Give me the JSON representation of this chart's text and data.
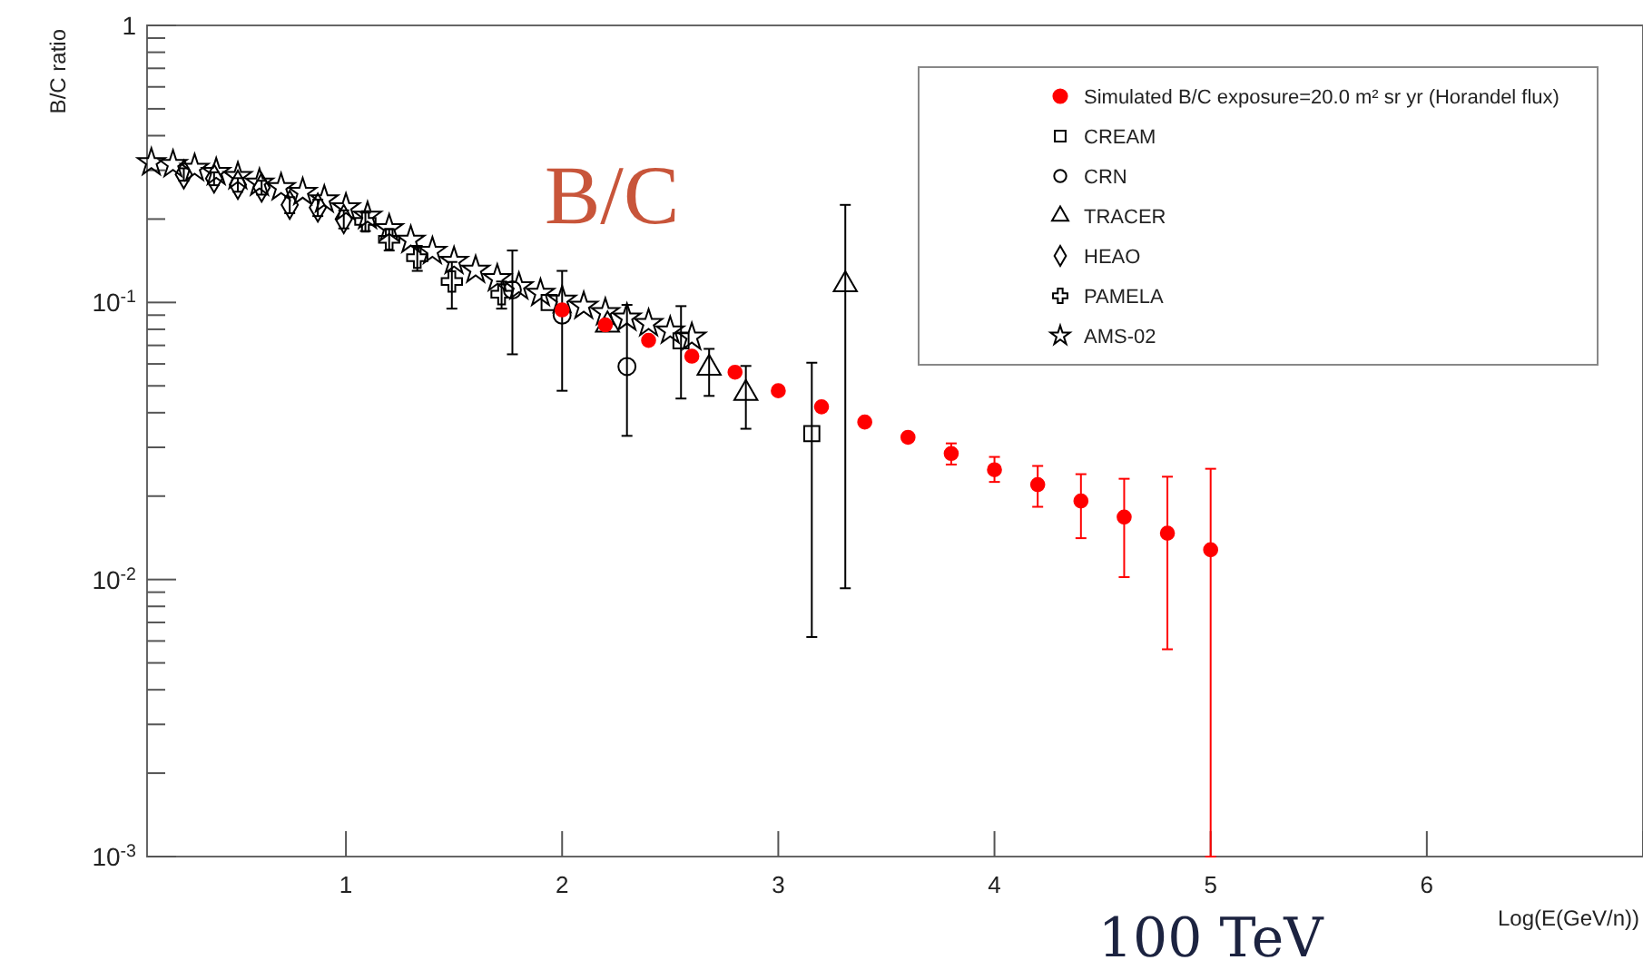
{
  "chart_data": {
    "type": "scatter",
    "xlabel": "Log(E(GeV/n))",
    "ylabel": "B/C ratio",
    "log": "y",
    "legend": "top right",
    "xlim": [
      0.08,
      7
    ],
    "ylim": [
      0.001,
      1
    ],
    "xticks": [
      1,
      2,
      3,
      4,
      5,
      6,
      {
        "value": 7,
        "label": null
      }
    ],
    "yticks": [
      {
        "value": 0.001,
        "label": "10$^{-3}$"
      },
      {
        "value": 0.002,
        "label": null
      },
      {
        "value": 0.003,
        "label": null
      },
      {
        "value": 0.004,
        "label": null
      },
      {
        "value": 0.005,
        "label": null
      },
      {
        "value": 0.006,
        "label": null
      },
      {
        "value": 0.007,
        "label": null
      },
      {
        "value": 0.008,
        "label": null
      },
      {
        "value": 0.009,
        "label": null
      },
      {
        "value": 0.01,
        "label": "10$^{-2}$"
      },
      {
        "value": 0.02,
        "label": null
      },
      {
        "value": 0.03,
        "label": null
      },
      {
        "value": 0.04,
        "label": null
      },
      {
        "value": 0.05,
        "label": null
      },
      {
        "value": 0.06,
        "label": null
      },
      {
        "value": 0.07,
        "label": null
      },
      {
        "value": 0.08,
        "label": null
      },
      {
        "value": 0.09,
        "label": null
      },
      {
        "value": 0.1,
        "label": "10$^{-1}$"
      },
      {
        "value": 0.2,
        "label": null
      },
      {
        "value": 0.3,
        "label": null
      },
      {
        "value": 0.4,
        "label": null
      },
      {
        "value": 0.5,
        "label": null
      },
      {
        "value": 0.6,
        "label": null
      },
      {
        "value": 0.7,
        "label": null
      },
      {
        "value": 0.8,
        "label": null
      },
      {
        "value": 0.9,
        "label": null
      },
      1
    ],
    "annotations": [
      "B/C",
      "100 TeV"
    ],
    "series": [
      {
        "name": "Simulated B/C exposure=20.0 m² sr yr (Horandel flux)",
        "color": "#ff0000",
        "marker": "circle",
        "x": [
          2.0,
          2.2,
          2.4,
          2.6,
          2.8,
          3.0,
          3.2,
          3.4,
          3.6,
          3.8,
          4.0,
          4.2,
          4.4,
          4.6,
          4.8,
          5.0
        ],
        "values": [
          0.094,
          0.083,
          0.073,
          0.064,
          0.056,
          0.048,
          0.042,
          0.037,
          0.0326,
          0.0285,
          0.0249,
          0.022,
          0.0192,
          0.0168,
          0.0147,
          0.0128
        ],
        "errors": [
          null,
          null,
          null,
          null,
          null,
          null,
          null,
          null,
          null,
          [
            0.026,
            0.031
          ],
          [
            0.0225,
            0.0277
          ],
          [
            0.0183,
            0.0257
          ],
          [
            0.0141,
            0.024
          ],
          [
            0.0102,
            0.0231
          ],
          [
            0.0056,
            0.0235
          ],
          [
            0.001,
            0.0251
          ]
        ]
      },
      {
        "name": "CREAM",
        "color": "#000000",
        "marker": "square",
        "x": [
          1.94,
          2.55,
          3.155
        ],
        "values": [
          0.1,
          0.0727,
          0.0336
        ],
        "errors": [
          null,
          [
            0.045,
            0.097
          ],
          [
            0.0062,
            0.0606
          ]
        ]
      },
      {
        "name": "CRN",
        "color": "#000000",
        "marker": "circle",
        "x": [
          1.77,
          2.0,
          2.3
        ],
        "values": [
          0.111,
          0.09,
          0.0587
        ],
        "errors": [
          [
            0.065,
            0.154
          ],
          [
            0.048,
            0.13
          ],
          [
            0.033,
            0.098
          ]
        ]
      },
      {
        "name": "TRACER",
        "color": "#000000",
        "marker": "triangle",
        "x": [
          2.21,
          2.68,
          2.85,
          3.31
        ],
        "values": [
          0.083,
          0.058,
          0.047,
          0.116
        ],
        "errors": [
          null,
          [
            0.046,
            0.068
          ],
          [
            0.035,
            0.059
          ],
          [
            0.0093,
            0.225
          ]
        ]
      },
      {
        "name": "HEAO",
        "color": "#000000",
        "marker": "diamond",
        "x": [
          0.25,
          0.39,
          0.5,
          0.61,
          0.74,
          0.87,
          0.99
        ],
        "values": [
          0.29,
          0.28,
          0.266,
          0.26,
          0.225,
          0.22,
          0.2
        ],
        "errors": [
          0.015,
          0.015,
          0.015,
          0.015,
          0.015,
          0.015,
          0.015
        ]
      },
      {
        "name": "PAMELA",
        "color": "#000000",
        "marker": "cross",
        "x": [
          1.09,
          1.2,
          1.33,
          1.49,
          1.72
        ],
        "values": [
          0.196,
          0.169,
          0.145,
          0.119,
          0.107
        ],
        "errors": [
          0.015,
          0.015,
          0.015,
          [
            0.095,
            0.14
          ],
          0.012
        ]
      },
      {
        "name": "AMS-02",
        "color": "#000000",
        "marker": "star",
        "x": [
          0.1,
          0.2,
          0.3,
          0.4,
          0.5,
          0.6,
          0.7,
          0.8,
          0.9,
          1.0,
          1.1,
          1.2,
          1.3,
          1.4,
          1.5,
          1.6,
          1.7,
          1.8,
          1.9,
          2.0,
          2.1,
          2.2,
          2.3,
          2.4,
          2.5,
          2.6
        ],
        "values": [
          0.32,
          0.315,
          0.305,
          0.295,
          0.285,
          0.27,
          0.26,
          0.25,
          0.235,
          0.22,
          0.205,
          0.185,
          0.168,
          0.153,
          0.141,
          0.131,
          0.122,
          0.114,
          0.108,
          0.102,
          0.097,
          0.092,
          0.088,
          0.084,
          0.079,
          0.075
        ]
      }
    ]
  }
}
